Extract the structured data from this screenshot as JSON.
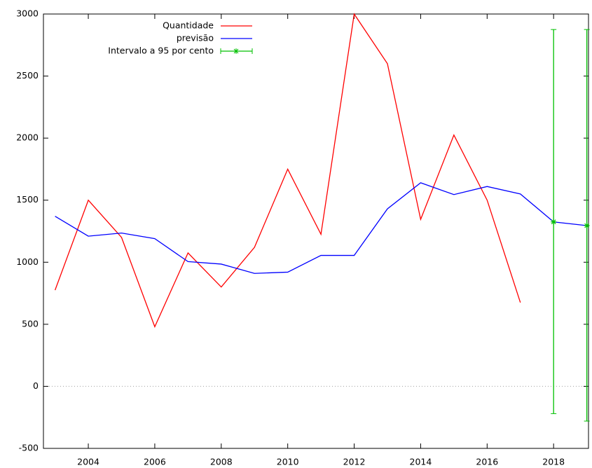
{
  "chart_data": {
    "type": "line",
    "series": [
      {
        "name": "Quantidade",
        "color": "#ff0000",
        "x": [
          2003,
          2004,
          2005,
          2006,
          2007,
          2008,
          2009,
          2010,
          2011,
          2012,
          2013,
          2014,
          2015,
          2016,
          2017
        ],
        "values": [
          775,
          1500,
          1200,
          480,
          1075,
          800,
          1120,
          1750,
          1225,
          3000,
          2600,
          1345,
          2025,
          1500,
          675
        ]
      },
      {
        "name": "previsão",
        "color": "#0000ff",
        "x": [
          2003,
          2004,
          2005,
          2006,
          2007,
          2008,
          2009,
          2010,
          2011,
          2012,
          2013,
          2014,
          2015,
          2016,
          2017,
          2018,
          2019
        ],
        "values": [
          1370,
          1210,
          1235,
          1190,
          1005,
          985,
          910,
          920,
          1055,
          1055,
          1430,
          1640,
          1545,
          1610,
          1550,
          1325,
          1295
        ]
      },
      {
        "name": "Intervalo a 95 por cento",
        "color": "#00c000",
        "style": "errorbars",
        "x": [
          2018,
          2019
        ],
        "values": [
          1325,
          1295
        ],
        "low": [
          -220,
          -280
        ],
        "high": [
          2875,
          2875
        ]
      }
    ],
    "xlim": [
      2002.65,
      2019.05
    ],
    "xticks": [
      2004,
      2006,
      2008,
      2010,
      2012,
      2014,
      2016,
      2018
    ],
    "ylim": [
      -500,
      3000
    ],
    "yticks": [
      -500,
      0,
      500,
      1000,
      1500,
      2000,
      2500,
      3000
    ],
    "zero_axis": true,
    "legend": "top-left"
  }
}
